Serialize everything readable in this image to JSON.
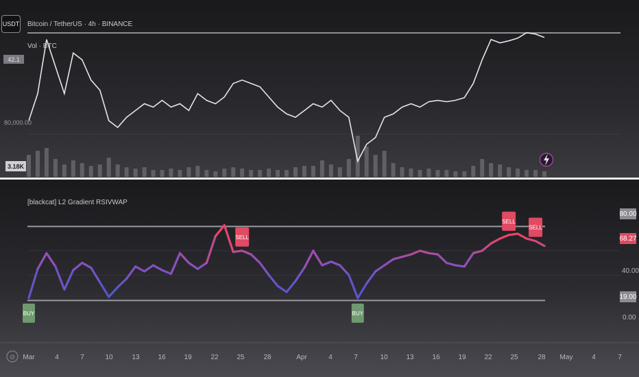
{
  "header": {
    "currency_btn": "USDT",
    "symbol_title": "Bitcoin / TetherUS · 4h · BINANCE",
    "vol_label": "Vol · BTC",
    "scale_badge": "42.1",
    "price_label": "80,000.00",
    "vol_badge": "3.18K"
  },
  "indicator": {
    "title": "[blackcat] L2 Gradient RSIVWAP",
    "badge_upper": "80.00",
    "badge_current": "68.27",
    "badge_lower": "19.00",
    "scale_labels": [
      "40.00",
      "0.00"
    ],
    "signal_sell": "SELL",
    "signal_buy": "BUY"
  },
  "time_axis": {
    "goto_label": "⊘",
    "labels": [
      "Mar",
      "4",
      "7",
      "10",
      "13",
      "16",
      "19",
      "22",
      "25",
      "28",
      "Apr",
      "4",
      "7",
      "10",
      "13",
      "16",
      "19",
      "22",
      "25",
      "28",
      "May",
      "4",
      "7"
    ]
  },
  "chart_data": [
    {
      "type": "line",
      "title": "Bitcoin / TetherUS · 4h · BINANCE",
      "x": [
        "Mar 1",
        "Mar 2",
        "Mar 3",
        "Mar 4",
        "Mar 5",
        "Mar 6",
        "Mar 7",
        "Mar 8",
        "Mar 9",
        "Mar 10",
        "Mar 11",
        "Mar 12",
        "Mar 13",
        "Mar 14",
        "Mar 15",
        "Mar 16",
        "Mar 17",
        "Mar 18",
        "Mar 19",
        "Mar 20",
        "Mar 21",
        "Mar 22",
        "Mar 23",
        "Mar 24",
        "Mar 25",
        "Mar 26",
        "Mar 27",
        "Mar 28",
        "Mar 29",
        "Mar 30",
        "Mar 31",
        "Apr 1",
        "Apr 2",
        "Apr 3",
        "Apr 4",
        "Apr 5",
        "Apr 6",
        "Apr 7",
        "Apr 8",
        "Apr 9",
        "Apr 10",
        "Apr 11",
        "Apr 12",
        "Apr 13",
        "Apr 14",
        "Apr 15",
        "Apr 16",
        "Apr 17",
        "Apr 18",
        "Apr 19",
        "Apr 20",
        "Apr 21",
        "Apr 22",
        "Apr 23",
        "Apr 24",
        "Apr 25",
        "Apr 26",
        "Apr 27",
        "Apr 28"
      ],
      "series": [
        {
          "values": [
            82000,
            86000,
            94000,
            90000,
            86000,
            92000,
            91000,
            88000,
            86500,
            82000,
            81000,
            82500,
            83500,
            84500,
            84000,
            85000,
            84000,
            84500,
            83500,
            86000,
            85000,
            84500,
            85500,
            87500,
            88000,
            87500,
            87000,
            85500,
            84000,
            83000,
            82500,
            83500,
            84500,
            84000,
            85000,
            83500,
            82500,
            76000,
            78500,
            79500,
            82500,
            83000,
            84000,
            84500,
            84000,
            84800,
            85000,
            84800,
            85000,
            85400,
            87500,
            91000,
            94000,
            93500,
            93800,
            94200,
            95000,
            94800,
            94300
          ]
        }
      ],
      "ylim": [
        74500,
        97000
      ],
      "labeled_level": 80000
    },
    {
      "type": "bar",
      "title": "Vol · BTC",
      "series": [
        {
          "name": "Vol · BTC",
          "values": [
            1.6,
            1.9,
            2.1,
            1.3,
            0.9,
            1.2,
            1.0,
            0.8,
            0.9,
            1.4,
            0.9,
            0.7,
            0.6,
            0.7,
            0.5,
            0.5,
            0.6,
            0.5,
            0.7,
            0.8,
            0.5,
            0.4,
            0.6,
            0.7,
            0.6,
            0.5,
            0.5,
            0.6,
            0.5,
            0.5,
            0.7,
            0.8,
            0.8,
            1.2,
            0.9,
            0.7,
            1.3,
            3.0,
            2.2,
            1.6,
            1.9,
            1.0,
            0.7,
            0.6,
            0.5,
            0.6,
            0.5,
            0.5,
            0.4,
            0.4,
            0.8,
            1.3,
            1.0,
            0.9,
            0.7,
            0.6,
            0.5,
            0.5,
            0.4
          ]
        }
      ],
      "latest_label": "3.18K"
    },
    {
      "type": "line",
      "title": "[blackcat] L2 Gradient RSIVWAP",
      "series": [
        {
          "name": "[blackcat] L2 Gradient RSIVWAP",
          "values": [
            21,
            45,
            58,
            47,
            28,
            44,
            50,
            46,
            34,
            22,
            30,
            37,
            47,
            43,
            48,
            44,
            41,
            58,
            50,
            45,
            50,
            72,
            81,
            59,
            60,
            57,
            50,
            40,
            31,
            26,
            35,
            46,
            60,
            48,
            51,
            48,
            40,
            21,
            33,
            43,
            48,
            53,
            55,
            57,
            60,
            58,
            57,
            50,
            48,
            47,
            58,
            60,
            66,
            70,
            73,
            74,
            70,
            68,
            64
          ]
        }
      ],
      "ylim": [
        0,
        100
      ],
      "reference_lines": [
        80,
        19
      ],
      "latest_value": 68.27,
      "signals": [
        {
          "type": "SELL",
          "x": "Mar 25"
        },
        {
          "type": "SELL",
          "x": "Apr 24"
        },
        {
          "type": "SELL",
          "x": "Apr 27"
        },
        {
          "type": "BUY",
          "x": "Mar 1"
        },
        {
          "type": "BUY",
          "x": "Apr 7"
        }
      ]
    }
  ]
}
